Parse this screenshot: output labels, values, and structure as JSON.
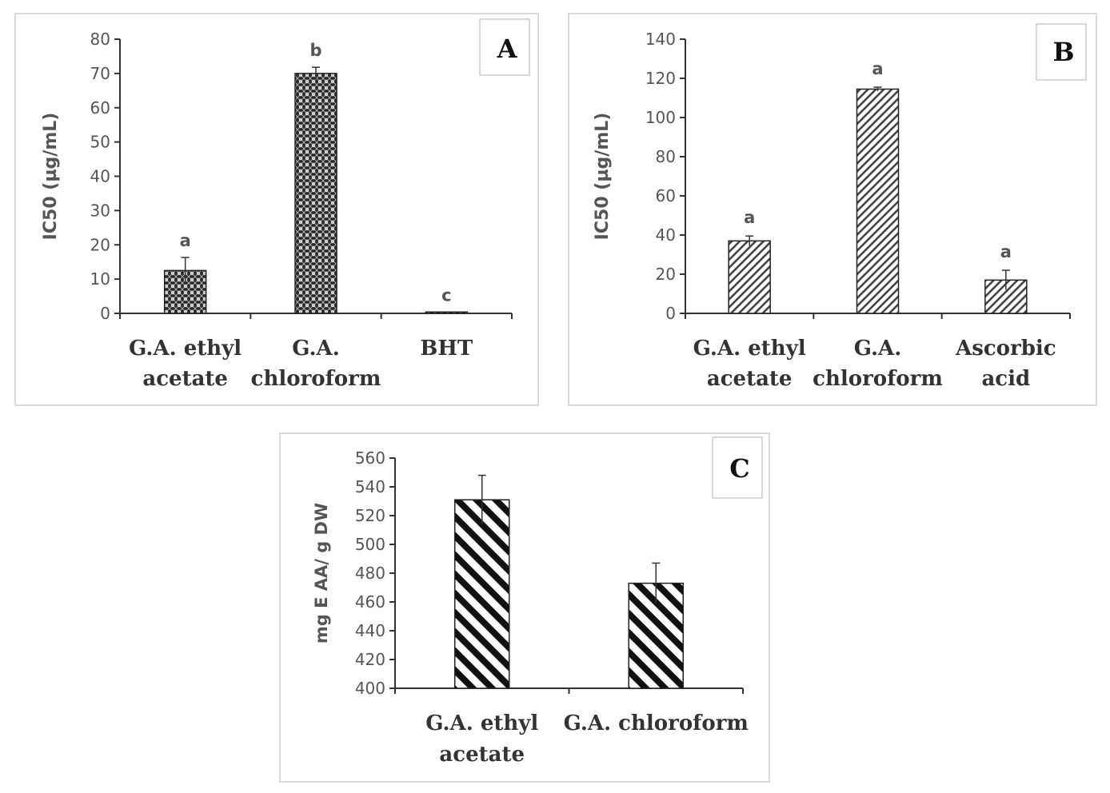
{
  "chart_data": [
    {
      "panel": "A",
      "type": "bar",
      "ylabel": "IC50   (µg/mL)",
      "ylim": [
        0,
        80
      ],
      "yticks": [
        0,
        10,
        20,
        30,
        40,
        50,
        60,
        70,
        80
      ],
      "categories": [
        [
          "G.A. ethyl",
          "acetate"
        ],
        [
          "G.A.",
          "chloroform"
        ],
        [
          "BHT"
        ]
      ],
      "values": [
        12.5,
        70,
        0.4
      ],
      "errors": [
        3.8,
        1.8,
        0
      ],
      "significance": [
        "a",
        "b",
        "c"
      ],
      "pattern": "crosshatch"
    },
    {
      "panel": "B",
      "type": "bar",
      "ylabel": "IC50 (µg/mL)",
      "ylim": [
        0,
        140
      ],
      "yticks": [
        0,
        20,
        40,
        60,
        80,
        100,
        120,
        140
      ],
      "categories": [
        [
          "G.A. ethyl",
          "acetate"
        ],
        [
          "G.A.",
          "chloroform"
        ],
        [
          "Ascorbic",
          "acid"
        ]
      ],
      "values": [
        37,
        114.5,
        17
      ],
      "errors": [
        2.5,
        1,
        5
      ],
      "significance": [
        "a",
        "a",
        "a"
      ],
      "pattern": "fine-diagonal"
    },
    {
      "panel": "C",
      "type": "bar",
      "ylabel": "mg E AA/ g DW",
      "ylim": [
        400,
        560
      ],
      "yticks": [
        400,
        420,
        440,
        460,
        480,
        500,
        520,
        540,
        560
      ],
      "categories": [
        [
          "G.A. ethyl",
          "acetate"
        ],
        [
          "G.A. chloroform"
        ]
      ],
      "values": [
        531,
        473
      ],
      "errors": [
        17,
        14
      ],
      "significance": [
        "",
        ""
      ],
      "pattern": "bold-diagonal"
    }
  ],
  "colors": {
    "axis": "#333333",
    "tick_text": "#555555",
    "category_text": "#333333",
    "panel_border": "#d9d9d9",
    "bar_fill": "#6e6e6e",
    "bar_stroke": "#222222"
  }
}
